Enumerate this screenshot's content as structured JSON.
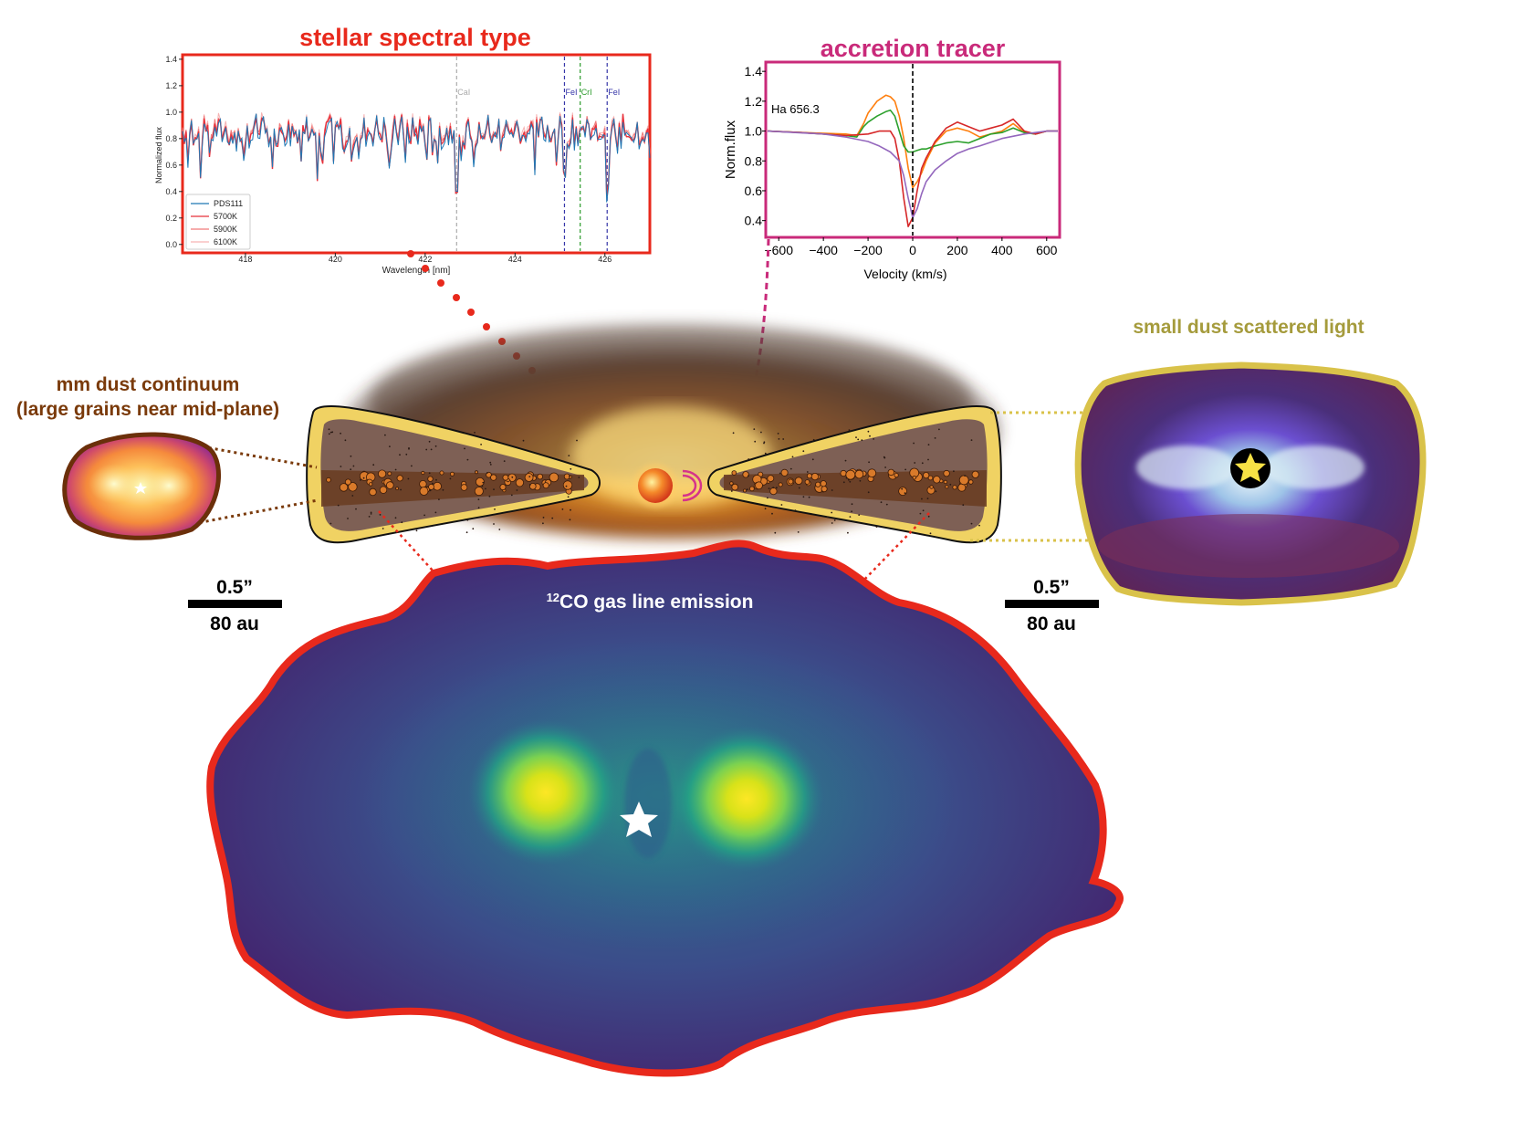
{
  "colors": {
    "spectral": "#e8291c",
    "accretion": "#c92a7a",
    "mm_dust": "#7a3a0a",
    "scattered": "#a59b3c",
    "co_outline": "#e8291c"
  },
  "spectral_panel": {
    "title": "stellar spectral type",
    "xlabel": "Wavelength [nm]",
    "ylabel": "Normalized flux",
    "xticks": [
      "418",
      "420",
      "422",
      "424",
      "426"
    ],
    "yticks": [
      "0.0",
      "0.2",
      "0.4",
      "0.6",
      "0.8",
      "1.0",
      "1.2",
      "1.4"
    ],
    "line_labels": [
      "CaI",
      "FeI",
      "CrI",
      "FeI"
    ],
    "legend": [
      "PDS111",
      "5700K",
      "5900K",
      "6100K"
    ]
  },
  "accretion_panel": {
    "title": "accretion tracer",
    "xlabel": "Velocity (km/s)",
    "ylabel": "Norm.flux",
    "annotation": "Ha 656.3",
    "xticks": [
      "−600",
      "−400",
      "−200",
      "0",
      "200",
      "400",
      "600"
    ],
    "yticks": [
      "0.4",
      "0.6",
      "0.8",
      "1.0",
      "1.2",
      "1.4"
    ]
  },
  "mm_dust": {
    "title_line1": "mm dust continuum",
    "title_line2": "(large grains near mid-plane)"
  },
  "scattered_light": {
    "title": "small dust scattered light"
  },
  "co_map": {
    "title_sup": "12",
    "title_rest": "CO gas line emission"
  },
  "scalebar_left": {
    "angle": "0.5”",
    "distance": "80 au"
  },
  "scalebar_right": {
    "angle": "0.5”",
    "distance": "80 au"
  },
  "chart_data": [
    {
      "type": "line",
      "title": "stellar spectral type",
      "xlabel": "Wavelength [nm]",
      "ylabel": "Normalized flux",
      "xlim": [
        416.6,
        427.0
      ],
      "ylim": [
        -0.05,
        1.42
      ],
      "vlines": [
        {
          "x": 422.7,
          "label": "CaI",
          "color": "#aaaaaa"
        },
        {
          "x": 425.1,
          "label": "FeI",
          "color": "#3535a8"
        },
        {
          "x": 425.45,
          "label": "CrI",
          "color": "#2a9a2a"
        },
        {
          "x": 426.05,
          "label": "FeI",
          "color": "#3535a8"
        }
      ],
      "series": [
        {
          "name": "PDS111",
          "color": "#1f77b4"
        },
        {
          "name": "5700K",
          "color": "#e8303a"
        },
        {
          "name": "5900K",
          "color": "#f07a7a"
        },
        {
          "name": "6100K",
          "color": "#f6b3b3"
        }
      ]
    },
    {
      "type": "line",
      "title": "accretion tracer",
      "xlabel": "Velocity (km/s)",
      "ylabel": "Norm.flux",
      "xlim": [
        -650,
        650
      ],
      "ylim": [
        0.3,
        1.45
      ],
      "vline": 0,
      "series": [
        {
          "color": "#ff7f0e",
          "x": [
            -650,
            -500,
            -300,
            -250,
            -220,
            -200,
            -160,
            -120,
            -100,
            -80,
            -60,
            -40,
            -20,
            0,
            20,
            40,
            60,
            100,
            150,
            200,
            250,
            300,
            350,
            400,
            450,
            500,
            550,
            600,
            650
          ],
          "y": [
            1.0,
            0.99,
            0.98,
            0.97,
            1.05,
            1.12,
            1.2,
            1.24,
            1.23,
            1.2,
            1.1,
            0.95,
            0.75,
            0.62,
            0.66,
            0.72,
            0.8,
            0.92,
            1.0,
            1.02,
            1.0,
            0.96,
            0.98,
            1.0,
            1.05,
            0.99,
            0.98,
            1.0,
            1.0
          ]
        },
        {
          "color": "#2ca02c",
          "x": [
            -650,
            -500,
            -300,
            -250,
            -220,
            -200,
            -160,
            -120,
            -100,
            -80,
            -60,
            -40,
            -20,
            0,
            20,
            40,
            60,
            100,
            150,
            200,
            250,
            300,
            350,
            400,
            450,
            500,
            550,
            600,
            650
          ],
          "y": [
            1.0,
            0.99,
            0.97,
            0.96,
            1.03,
            1.06,
            1.1,
            1.13,
            1.14,
            1.1,
            1.0,
            0.9,
            0.86,
            0.86,
            0.87,
            0.88,
            0.88,
            0.9,
            0.92,
            0.93,
            0.92,
            0.95,
            0.98,
            0.99,
            1.02,
            0.99,
            0.98,
            1.0,
            1.0
          ]
        },
        {
          "color": "#d62728",
          "x": [
            -650,
            -500,
            -300,
            -200,
            -150,
            -100,
            -80,
            -60,
            -40,
            -20,
            0,
            20,
            40,
            60,
            100,
            150,
            200,
            250,
            300,
            350,
            400,
            450,
            500,
            550,
            600,
            650
          ],
          "y": [
            1.0,
            0.99,
            0.97,
            0.98,
            1.0,
            1.0,
            0.95,
            0.8,
            0.55,
            0.36,
            0.42,
            0.6,
            0.75,
            0.82,
            0.93,
            1.02,
            1.06,
            1.03,
            1.0,
            1.02,
            1.04,
            1.08,
            1.0,
            0.98,
            1.0,
            1.0
          ]
        },
        {
          "color": "#9467bd",
          "x": [
            -650,
            -400,
            -300,
            -200,
            -150,
            -100,
            -60,
            -40,
            -20,
            0,
            20,
            40,
            60,
            100,
            150,
            200,
            250,
            300,
            400,
            500,
            600,
            650
          ],
          "y": [
            1.0,
            0.98,
            0.96,
            0.93,
            0.9,
            0.86,
            0.8,
            0.7,
            0.55,
            0.42,
            0.48,
            0.58,
            0.66,
            0.74,
            0.8,
            0.85,
            0.88,
            0.9,
            0.95,
            0.98,
            1.0,
            1.0
          ]
        }
      ]
    }
  ]
}
